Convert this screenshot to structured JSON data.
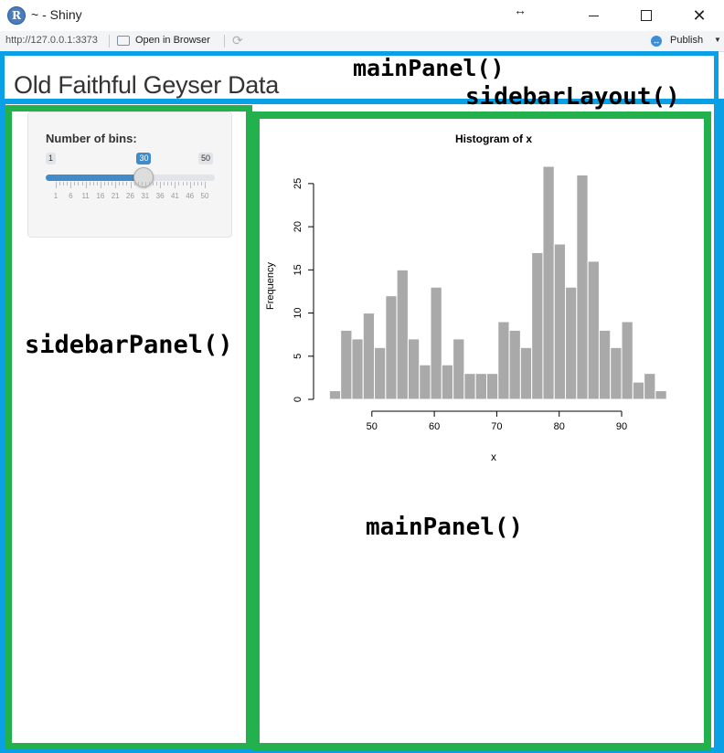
{
  "window": {
    "title": "~ - Shiny",
    "resize_glyph": "↔",
    "controls": {
      "minimize": "",
      "maximize": "",
      "close": "✕"
    },
    "logo_letter": "R"
  },
  "toolbar": {
    "url": "http://127.0.0.1:3373",
    "open_in_browser": "Open in Browser",
    "refresh_glyph": "⟳",
    "publish": "Publish",
    "publish_caret": "▼",
    "publish_icon_glyph": "↔"
  },
  "app": {
    "title": "Old Faithful Geyser Data",
    "slider": {
      "label": "Number of bins:",
      "min": 1,
      "max": 50,
      "value": 30,
      "min_label": "1",
      "max_label": "50",
      "value_label": "30",
      "grid_labels": [
        "1",
        "6",
        "11",
        "16",
        "21",
        "26",
        "31",
        "36",
        "41",
        "46",
        "50"
      ],
      "accent_color": "#428bca"
    }
  },
  "annotations": {
    "main_panel_top": "mainPanel()",
    "sidebar_layout": "sidebarLayout()",
    "sidebar_panel": "sidebarPanel()",
    "main_panel_bottom": "mainPanel()",
    "blue_color": "#0aa0e6",
    "green_color": "#22b14c"
  },
  "chart_data": {
    "type": "bar",
    "title": "Histogram of x",
    "xlabel": "x",
    "ylabel": "Frequency",
    "bin_width": 1.8,
    "bin_start": 43.2,
    "values": [
      1,
      8,
      7,
      10,
      6,
      12,
      15,
      7,
      4,
      13,
      4,
      7,
      3,
      3,
      3,
      9,
      8,
      6,
      17,
      27,
      18,
      13,
      26,
      16,
      8,
      6,
      9,
      2,
      3,
      1
    ],
    "xlim": [
      43,
      96
    ],
    "ylim": [
      0,
      27
    ],
    "x_ticks": [
      50,
      60,
      70,
      80,
      90
    ],
    "y_ticks": [
      0,
      5,
      10,
      15,
      20,
      25
    ],
    "bar_color": "#a9a9a9",
    "grid": false
  }
}
